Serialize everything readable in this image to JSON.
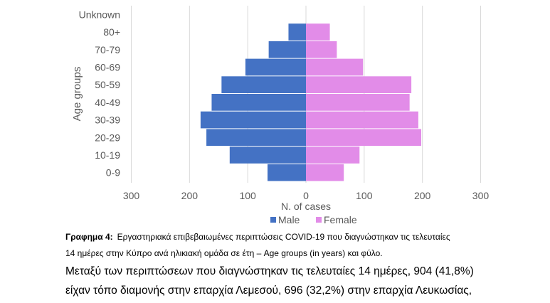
{
  "chart_data": {
    "type": "bar",
    "orientation": "horizontal-population-pyramid",
    "categories": [
      "0-9",
      "10-19",
      "20-29",
      "30-39",
      "40-49",
      "50-59",
      "60-69",
      "70-79",
      "80+",
      "Unknown"
    ],
    "series": [
      {
        "name": "Male",
        "color": "#4472C4",
        "values": [
          66,
          131,
          171,
          181,
          162,
          145,
          104,
          64,
          30,
          0
        ]
      },
      {
        "name": "Female",
        "color": "#E28CE8",
        "values": [
          65,
          92,
          198,
          193,
          178,
          181,
          98,
          53,
          41,
          0
        ]
      }
    ],
    "xlabel": "N. of cases",
    "ylabel": "Age groups",
    "xlim": [
      -300,
      300
    ],
    "xticks": [
      -300,
      -200,
      -100,
      0,
      100,
      200,
      300
    ],
    "xtick_labels": [
      "300",
      "200",
      "100",
      "0",
      "100",
      "200",
      "300"
    ],
    "grid": "vertical",
    "legend_position": "bottom"
  },
  "caption": {
    "label": "Γραφημα 4:",
    "line1": "Εργαστηριακά επιβεβαιωμένες περιπτώσεις COVID-19 που διαγνώστηκαν τις τελευταίες",
    "line2": "14 ημέρες στην Κύπρο ανά ηλικιακή ομάδα σε έτη – Age groups (in years) και φύλο."
  },
  "paragraph": {
    "line1": "Μεταξύ των περιπτώσεων που διαγνώστηκαν τις τελευταίες 14 ημέρες, 904 (41,8%)",
    "line2": "είχαν τόπο διαμονής στην επαρχία Λεμεσού, 696 (32,2%) στην επαρχία Λευκωσίας,"
  }
}
